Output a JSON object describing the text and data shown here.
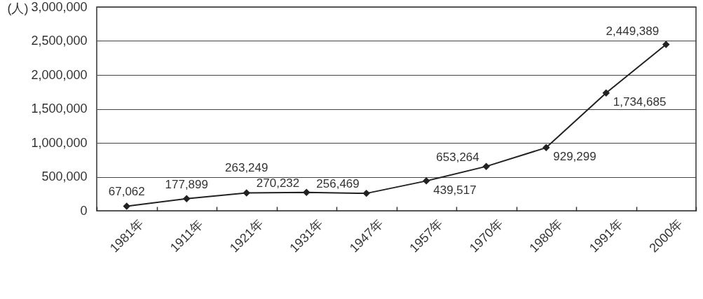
{
  "chart_data": {
    "type": "line",
    "ylabel": "(人)",
    "categories": [
      "1981年",
      "1911年",
      "1921年",
      "1931年",
      "1947年",
      "1957年",
      "1970年",
      "1980年",
      "1991年",
      "2000年"
    ],
    "series": [
      {
        "color": "#222222",
        "values": [
          67062,
          177899,
          263249,
          270232,
          256469,
          439517,
          653264,
          929299,
          1734685,
          2449389
        ],
        "value_labels": [
          "67,062",
          "177,899",
          "263,249",
          "270,232",
          "256,469",
          "439,517",
          "653,264",
          "929,299",
          "1,734,685",
          "2,449,389"
        ]
      }
    ],
    "ylim": [
      0,
      3000000
    ],
    "yticks": [
      0,
      {
        "value": 500000,
        "label": "500,000"
      },
      {
        "value": 1000000,
        "label": "1,000,000"
      },
      {
        "value": 1500000,
        "label": "1,500,000"
      },
      {
        "value": 2000000,
        "label": "2,000,000"
      },
      {
        "value": 2500000,
        "label": "2,500,000"
      },
      {
        "value": 3000000,
        "label": "3,000,000"
      }
    ],
    "grid": "y",
    "marker": "diamond",
    "line_style": "solid"
  }
}
